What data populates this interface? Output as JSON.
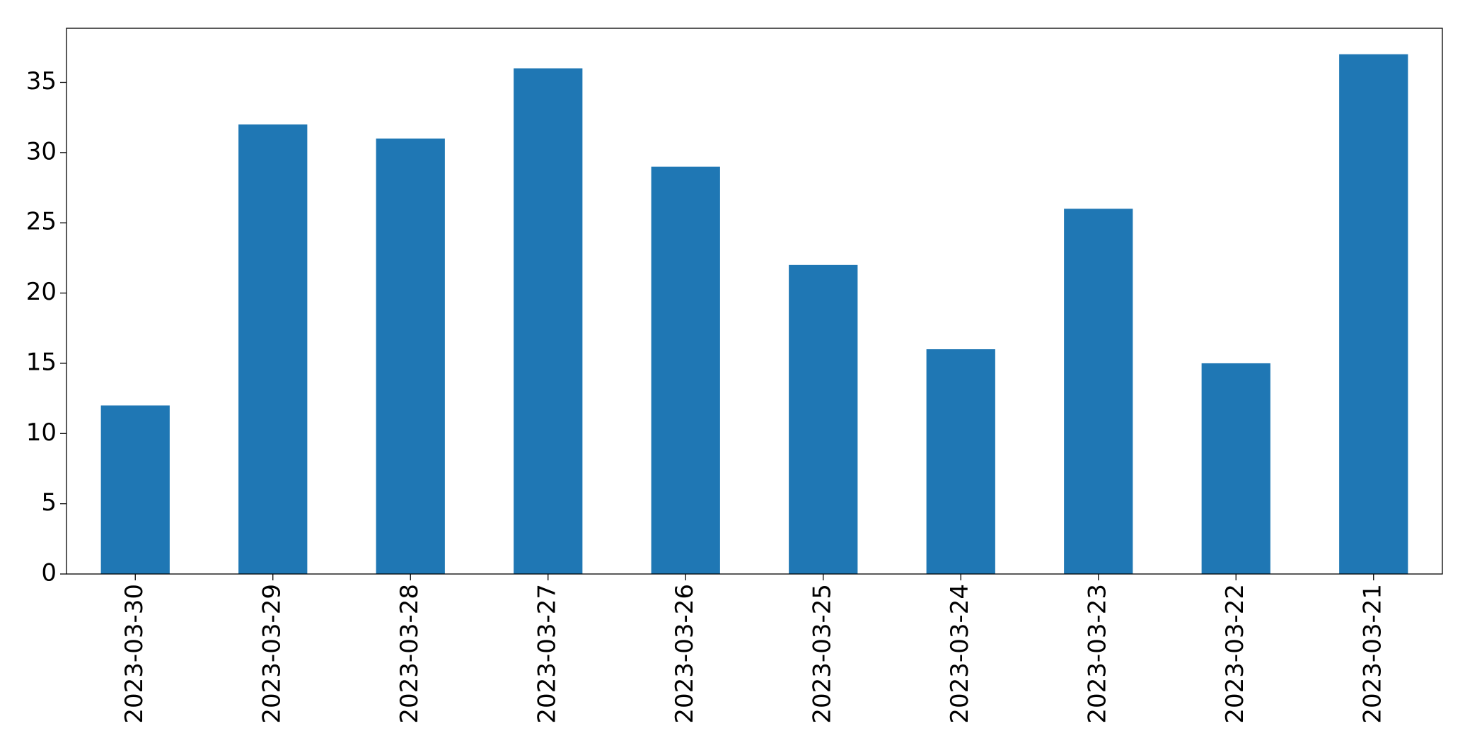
{
  "chart_data": {
    "type": "bar",
    "categories": [
      "2023-03-30",
      "2023-03-29",
      "2023-03-28",
      "2023-03-27",
      "2023-03-26",
      "2023-03-25",
      "2023-03-24",
      "2023-03-23",
      "2023-03-22",
      "2023-03-21"
    ],
    "values": [
      12,
      32,
      31,
      36,
      29,
      22,
      16,
      26,
      15,
      37
    ],
    "color": "#1f77b4",
    "ylim": [
      0,
      38.85
    ],
    "yticks": [
      0,
      5,
      10,
      15,
      20,
      25,
      30,
      35
    ],
    "grid": false
  }
}
